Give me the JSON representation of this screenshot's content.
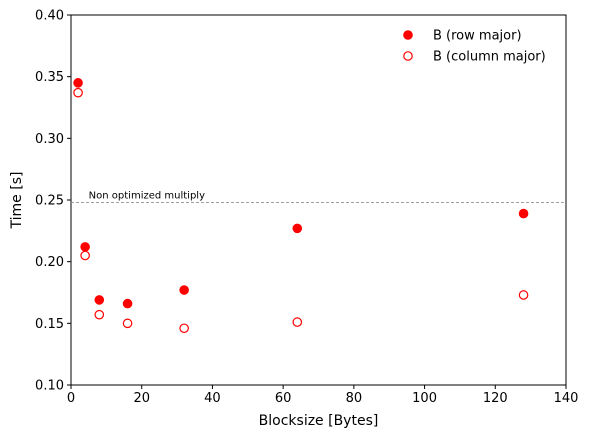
{
  "chart_data": {
    "type": "scatter",
    "title": "",
    "xlabel": "Blocksize [Bytes]",
    "ylabel": "Time [s]",
    "xlim": [
      0,
      140
    ],
    "ylim": [
      0.1,
      0.4
    ],
    "xticks": [
      0,
      20,
      40,
      60,
      80,
      100,
      120,
      140
    ],
    "xtick_labels": [
      "0",
      "20",
      "40",
      "60",
      "80",
      "100",
      "120",
      "140"
    ],
    "yticks": [
      0.1,
      0.15,
      0.2,
      0.25,
      0.3,
      0.35,
      0.4
    ],
    "ytick_labels": [
      "0.10",
      "0.15",
      "0.20",
      "0.25",
      "0.30",
      "0.35",
      "0.40"
    ],
    "grid": false,
    "legend_position": "top-right",
    "series": [
      {
        "name": "B (row major)",
        "marker": "filled-circle",
        "color": "#ff0000",
        "x": [
          2,
          4,
          8,
          16,
          32,
          64,
          128
        ],
        "y": [
          0.345,
          0.212,
          0.169,
          0.166,
          0.177,
          0.227,
          0.239
        ]
      },
      {
        "name": "B (column major)",
        "marker": "hollow-circle",
        "color": "#ff0000",
        "x": [
          2,
          4,
          8,
          16,
          32,
          64,
          128
        ],
        "y": [
          0.337,
          0.205,
          0.157,
          0.15,
          0.146,
          0.151,
          0.173
        ]
      }
    ],
    "reference_line": {
      "y": 0.248,
      "label": "Non optimized multiply",
      "color": "#808080",
      "style": "dashed"
    }
  }
}
